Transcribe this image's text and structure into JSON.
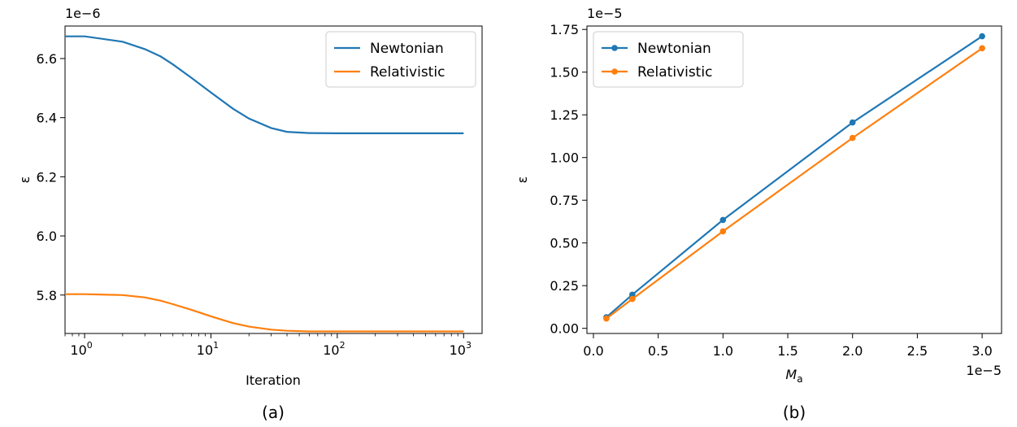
{
  "colors": {
    "newtonian": "#1f77b4",
    "relativistic": "#ff7f0e"
  },
  "chart_data": [
    {
      "type": "line",
      "caption": "(a)",
      "xlabel": "Iteration",
      "ylabel": "ε",
      "offset_text": "1e−6",
      "xscale": "log",
      "xlim": [
        0.7,
        1400
      ],
      "ylim": [
        5.67,
        6.71
      ],
      "xticks": [
        {
          "v": 1,
          "base": "10",
          "exp": "0"
        },
        {
          "v": 10,
          "base": "10",
          "exp": "1"
        },
        {
          "v": 100,
          "base": "10",
          "exp": "2"
        },
        {
          "v": 1000,
          "base": "10",
          "exp": "3"
        }
      ],
      "yticks": [
        {
          "v": 5.8,
          "label": "5.8"
        },
        {
          "v": 6.0,
          "label": "6.0"
        },
        {
          "v": 6.2,
          "label": "6.2"
        },
        {
          "v": 6.4,
          "label": "6.4"
        },
        {
          "v": 6.6,
          "label": "6.6"
        }
      ],
      "legend": "top-right",
      "series": [
        {
          "name": "Newtonian",
          "color_key": "newtonian",
          "x": [
            0.7,
            1,
            2,
            3,
            4,
            5,
            7,
            10,
            15,
            20,
            30,
            40,
            60,
            100,
            1000
          ],
          "y": [
            6.675,
            6.675,
            6.657,
            6.632,
            6.607,
            6.58,
            6.535,
            6.485,
            6.43,
            6.397,
            6.365,
            6.352,
            6.348,
            6.347,
            6.347
          ]
        },
        {
          "name": "Relativistic",
          "color_key": "relativistic",
          "x": [
            0.7,
            1,
            2,
            3,
            4,
            5,
            7,
            10,
            15,
            20,
            30,
            40,
            60,
            100,
            1000
          ],
          "y": [
            5.803,
            5.803,
            5.8,
            5.792,
            5.781,
            5.769,
            5.75,
            5.728,
            5.705,
            5.693,
            5.683,
            5.679,
            5.677,
            5.677,
            5.677
          ]
        }
      ]
    },
    {
      "type": "line",
      "caption": "(b)",
      "xlabel": "M",
      "xlabel_sub": "a",
      "ylabel": "ε",
      "offset_text_y": "1e−5",
      "offset_text_x": "1e−5",
      "xlim": [
        -0.05,
        3.15
      ],
      "ylim": [
        -0.03,
        1.77
      ],
      "xticks": [
        {
          "v": 0.0,
          "label": "0.0"
        },
        {
          "v": 0.5,
          "label": "0.5"
        },
        {
          "v": 1.0,
          "label": "1.0"
        },
        {
          "v": 1.5,
          "label": "1.5"
        },
        {
          "v": 2.0,
          "label": "2.0"
        },
        {
          "v": 2.5,
          "label": "2.5"
        },
        {
          "v": 3.0,
          "label": "3.0"
        }
      ],
      "yticks": [
        {
          "v": 0.0,
          "label": "0.00"
        },
        {
          "v": 0.25,
          "label": "0.25"
        },
        {
          "v": 0.5,
          "label": "0.50"
        },
        {
          "v": 0.75,
          "label": "0.75"
        },
        {
          "v": 1.0,
          "label": "1.00"
        },
        {
          "v": 1.25,
          "label": "1.25"
        },
        {
          "v": 1.5,
          "label": "1.50"
        },
        {
          "v": 1.75,
          "label": "1.75"
        }
      ],
      "legend": "top-left",
      "series": [
        {
          "name": "Newtonian",
          "color_key": "newtonian",
          "x": [
            0.1,
            0.3,
            1.0,
            2.0,
            3.0
          ],
          "y": [
            0.065,
            0.197,
            0.635,
            1.205,
            1.71
          ]
        },
        {
          "name": "Relativistic",
          "color_key": "relativistic",
          "x": [
            0.1,
            0.3,
            1.0,
            2.0,
            3.0
          ],
          "y": [
            0.057,
            0.172,
            0.568,
            1.115,
            1.64
          ]
        }
      ]
    }
  ]
}
